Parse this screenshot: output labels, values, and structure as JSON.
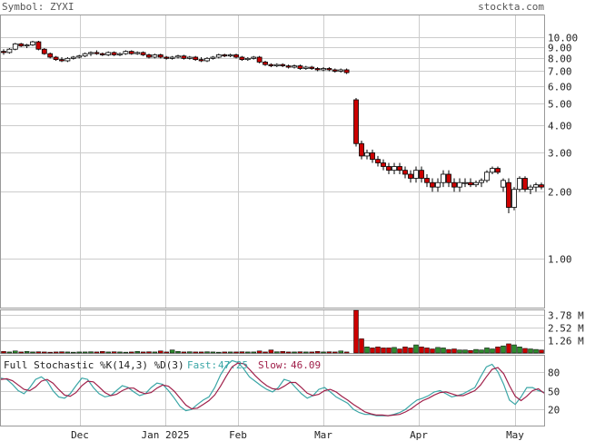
{
  "header": {
    "symbol_label": "Symbol: ZYXI",
    "source": "stockta.com"
  },
  "colors": {
    "up": "#ffffff",
    "down": "#cc0000",
    "vol_up": "#2e8b2e",
    "vol_down": "#cc0000",
    "fast": "#3aa6a6",
    "slow": "#a0204a",
    "grid": "#cccccc"
  },
  "chart_data": [
    {
      "type": "candlestick",
      "panel": "price",
      "scale": "log",
      "ylim": [
        0.6,
        12.5
      ],
      "y_ticks": [
        "10.00",
        "9.00",
        "8.00",
        "7.00",
        "6.00",
        "5.00",
        "4.00",
        "3.00",
        "2.00",
        "1.00"
      ],
      "x_ticks": [
        "Dec",
        "Jan 2025",
        "Feb",
        "Mar",
        "Apr",
        "May"
      ],
      "grid": true,
      "ohlc": [
        [
          8.6,
          8.8,
          8.3,
          8.5
        ],
        [
          8.5,
          8.9,
          8.4,
          8.8
        ],
        [
          8.8,
          9.4,
          8.7,
          9.3
        ],
        [
          9.3,
          9.4,
          9.0,
          9.1
        ],
        [
          9.1,
          9.3,
          8.9,
          9.2
        ],
        [
          9.2,
          9.6,
          9.1,
          9.5
        ],
        [
          9.5,
          9.6,
          8.7,
          8.8
        ],
        [
          8.8,
          8.9,
          8.3,
          8.4
        ],
        [
          8.4,
          8.5,
          8.0,
          8.1
        ],
        [
          8.1,
          8.2,
          7.8,
          7.9
        ],
        [
          7.9,
          8.1,
          7.7,
          7.8
        ],
        [
          7.8,
          8.1,
          7.7,
          8.0
        ],
        [
          8.0,
          8.2,
          7.9,
          8.1
        ],
        [
          8.1,
          8.3,
          8.0,
          8.2
        ],
        [
          8.2,
          8.5,
          8.1,
          8.4
        ],
        [
          8.4,
          8.6,
          8.2,
          8.5
        ],
        [
          8.5,
          8.7,
          8.3,
          8.4
        ],
        [
          8.4,
          8.5,
          8.2,
          8.3
        ],
        [
          8.3,
          8.6,
          8.2,
          8.5
        ],
        [
          8.5,
          8.6,
          8.2,
          8.3
        ],
        [
          8.3,
          8.5,
          8.2,
          8.4
        ],
        [
          8.4,
          8.7,
          8.3,
          8.6
        ],
        [
          8.6,
          8.7,
          8.3,
          8.4
        ],
        [
          8.4,
          8.6,
          8.3,
          8.5
        ],
        [
          8.5,
          8.6,
          8.2,
          8.3
        ],
        [
          8.3,
          8.4,
          8.0,
          8.1
        ],
        [
          8.1,
          8.4,
          8.0,
          8.3
        ],
        [
          8.3,
          8.4,
          8.0,
          8.1
        ],
        [
          8.1,
          8.2,
          7.9,
          8.0
        ],
        [
          8.0,
          8.2,
          7.9,
          8.1
        ],
        [
          8.1,
          8.3,
          8.0,
          8.2
        ],
        [
          8.2,
          8.3,
          7.9,
          8.0
        ],
        [
          8.0,
          8.2,
          7.9,
          8.1
        ],
        [
          8.1,
          8.2,
          7.8,
          7.9
        ],
        [
          7.9,
          8.1,
          7.7,
          7.8
        ],
        [
          7.8,
          8.1,
          7.7,
          8.0
        ],
        [
          8.0,
          8.2,
          7.9,
          8.1
        ],
        [
          8.1,
          8.4,
          8.0,
          8.3
        ],
        [
          8.3,
          8.4,
          8.1,
          8.2
        ],
        [
          8.2,
          8.4,
          8.1,
          8.3
        ],
        [
          8.3,
          8.4,
          8.0,
          8.1
        ],
        [
          8.1,
          8.2,
          7.8,
          7.9
        ],
        [
          7.9,
          8.1,
          7.8,
          8.0
        ],
        [
          8.0,
          8.2,
          7.9,
          8.1
        ],
        [
          8.1,
          8.2,
          7.6,
          7.7
        ],
        [
          7.7,
          7.8,
          7.4,
          7.5
        ],
        [
          7.5,
          7.6,
          7.3,
          7.4
        ],
        [
          7.4,
          7.6,
          7.3,
          7.5
        ],
        [
          7.5,
          7.6,
          7.3,
          7.4
        ],
        [
          7.4,
          7.5,
          7.2,
          7.3
        ],
        [
          7.3,
          7.5,
          7.2,
          7.4
        ],
        [
          7.4,
          7.5,
          7.1,
          7.2
        ],
        [
          7.2,
          7.4,
          7.1,
          7.3
        ],
        [
          7.3,
          7.4,
          7.1,
          7.2
        ],
        [
          7.2,
          7.3,
          7.0,
          7.1
        ],
        [
          7.1,
          7.3,
          7.0,
          7.2
        ],
        [
          7.2,
          7.3,
          7.0,
          7.1
        ],
        [
          7.1,
          7.2,
          6.9,
          7.0
        ],
        [
          7.0,
          7.2,
          6.9,
          7.1
        ],
        [
          7.1,
          7.2,
          6.8,
          6.9
        ],
        [
          5.2,
          5.3,
          3.2,
          3.3
        ],
        [
          3.3,
          3.4,
          2.8,
          2.9
        ],
        [
          2.9,
          3.1,
          2.8,
          3.0
        ],
        [
          3.0,
          3.1,
          2.7,
          2.8
        ],
        [
          2.8,
          2.9,
          2.6,
          2.7
        ],
        [
          2.7,
          2.8,
          2.5,
          2.6
        ],
        [
          2.6,
          2.7,
          2.4,
          2.5
        ],
        [
          2.5,
          2.7,
          2.4,
          2.6
        ],
        [
          2.6,
          2.7,
          2.4,
          2.5
        ],
        [
          2.5,
          2.6,
          2.3,
          2.4
        ],
        [
          2.4,
          2.5,
          2.2,
          2.3
        ],
        [
          2.3,
          2.6,
          2.2,
          2.5
        ],
        [
          2.5,
          2.6,
          2.2,
          2.3
        ],
        [
          2.3,
          2.4,
          2.1,
          2.2
        ],
        [
          2.2,
          2.3,
          2.0,
          2.1
        ],
        [
          2.1,
          2.3,
          2.0,
          2.2
        ],
        [
          2.2,
          2.5,
          2.1,
          2.4
        ],
        [
          2.4,
          2.5,
          2.1,
          2.2
        ],
        [
          2.2,
          2.3,
          2.0,
          2.1
        ],
        [
          2.1,
          2.3,
          2.0,
          2.2
        ],
        [
          2.2,
          2.3,
          2.1,
          2.2
        ],
        [
          2.2,
          2.3,
          2.1,
          2.15
        ],
        [
          2.15,
          2.25,
          2.1,
          2.2
        ],
        [
          2.2,
          2.3,
          2.1,
          2.25
        ],
        [
          2.25,
          2.5,
          2.2,
          2.45
        ],
        [
          2.45,
          2.6,
          2.4,
          2.55
        ],
        [
          2.55,
          2.6,
          2.4,
          2.45
        ],
        [
          2.1,
          2.3,
          2.0,
          2.25
        ],
        [
          2.2,
          2.3,
          1.6,
          1.7
        ],
        [
          1.7,
          2.1,
          1.65,
          2.05
        ],
        [
          2.05,
          2.35,
          2.0,
          2.3
        ],
        [
          2.3,
          2.35,
          2.0,
          2.05
        ],
        [
          2.05,
          2.15,
          1.95,
          2.1
        ],
        [
          2.1,
          2.2,
          2.0,
          2.15
        ],
        [
          2.15,
          2.2,
          2.05,
          2.1
        ]
      ]
    },
    {
      "type": "bar",
      "panel": "volume",
      "y_ticks": [
        "3.78 M",
        "2.52 M",
        "1.26 M"
      ],
      "ylim": [
        0,
        4.2
      ],
      "values": [
        0.15,
        0.1,
        0.2,
        0.1,
        0.15,
        0.1,
        0.12,
        0.1,
        0.08,
        0.1,
        0.12,
        0.1,
        0.08,
        0.1,
        0.1,
        0.12,
        0.1,
        0.15,
        0.1,
        0.12,
        0.1,
        0.08,
        0.1,
        0.15,
        0.1,
        0.12,
        0.1,
        0.2,
        0.1,
        0.3,
        0.15,
        0.1,
        0.12,
        0.1,
        0.1,
        0.12,
        0.1,
        0.08,
        0.1,
        0.1,
        0.1,
        0.12,
        0.1,
        0.1,
        0.2,
        0.1,
        0.3,
        0.12,
        0.15,
        0.1,
        0.1,
        0.12,
        0.1,
        0.1,
        0.15,
        0.1,
        0.12,
        0.1,
        0.2,
        0.1,
        4.2,
        1.4,
        0.6,
        0.5,
        0.6,
        0.5,
        0.5,
        0.55,
        0.4,
        0.6,
        0.5,
        0.8,
        0.6,
        0.5,
        0.4,
        0.55,
        0.5,
        0.35,
        0.4,
        0.3,
        0.3,
        0.25,
        0.35,
        0.3,
        0.5,
        0.4,
        0.6,
        0.7,
        0.9,
        0.8,
        0.6,
        0.45,
        0.4,
        0.35,
        0.3
      ]
    },
    {
      "type": "line",
      "panel": "stochastic",
      "title": "Full Stochastic %K(14,3) %D(3)",
      "fast_label": "Fast:",
      "fast_value": "47.25",
      "slow_label": "Slow:",
      "slow_value": "46.09",
      "ylim": [
        0,
        100
      ],
      "y_ticks": [
        "80",
        "50",
        "20"
      ],
      "series": [
        {
          "name": "Fast",
          "values": [
            70,
            68,
            60,
            50,
            45,
            55,
            68,
            72,
            65,
            50,
            40,
            38,
            45,
            58,
            70,
            68,
            55,
            45,
            40,
            42,
            50,
            58,
            55,
            48,
            42,
            45,
            55,
            62,
            60,
            50,
            38,
            25,
            18,
            20,
            28,
            35,
            40,
            55,
            75,
            90,
            98,
            95,
            85,
            72,
            65,
            58,
            52,
            48,
            55,
            68,
            65,
            55,
            45,
            38,
            42,
            52,
            55,
            48,
            40,
            35,
            30,
            20,
            15,
            12,
            12,
            10,
            10,
            10,
            12,
            15,
            20,
            28,
            35,
            38,
            42,
            48,
            50,
            45,
            40,
            42,
            45,
            50,
            55,
            72,
            88,
            92,
            80,
            60,
            35,
            28,
            40,
            55,
            55,
            50,
            47
          ]
        },
        {
          "name": "Slow",
          "values": [
            68,
            69,
            66,
            59,
            52,
            50,
            56,
            65,
            68,
            62,
            52,
            43,
            41,
            47,
            58,
            65,
            64,
            56,
            47,
            42,
            44,
            50,
            54,
            54,
            48,
            45,
            47,
            54,
            59,
            57,
            49,
            38,
            27,
            21,
            22,
            28,
            34,
            43,
            57,
            73,
            88,
            94,
            93,
            84,
            74,
            65,
            58,
            53,
            52,
            57,
            63,
            63,
            55,
            46,
            42,
            44,
            50,
            52,
            48,
            41,
            35,
            28,
            22,
            16,
            13,
            11,
            11,
            10,
            11,
            12,
            16,
            21,
            28,
            34,
            38,
            43,
            47,
            48,
            45,
            42,
            42,
            46,
            50,
            59,
            72,
            84,
            87,
            77,
            58,
            41,
            34,
            41,
            50,
            53,
            46
          ]
        }
      ]
    }
  ]
}
